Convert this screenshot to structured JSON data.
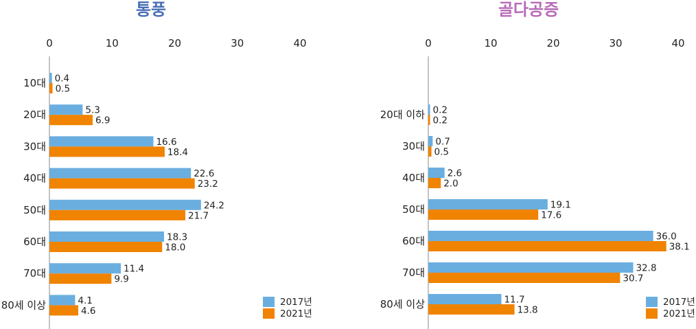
{
  "colors": {
    "y2017": "#6aaee0",
    "y2021": "#f08300",
    "title1": "#4a6fb5",
    "title2": "#b86ab8"
  },
  "chart_data": [
    {
      "type": "bar",
      "orientation": "horizontal",
      "title": "통풍",
      "xlim": [
        0,
        40
      ],
      "xticks": [
        0,
        10,
        20,
        30,
        40
      ],
      "categories": [
        "10대",
        "20대",
        "30대",
        "40대",
        "50대",
        "60대",
        "70대",
        "80세 이상"
      ],
      "series": [
        {
          "name": "2017년",
          "values": [
            0.4,
            5.3,
            16.6,
            22.6,
            24.2,
            18.3,
            11.4,
            4.1
          ],
          "labels": [
            "0.4",
            "5.3",
            "16.6",
            "22.6",
            "24.2",
            "18.3",
            "11.4",
            "4.1"
          ]
        },
        {
          "name": "2021년",
          "values": [
            0.5,
            6.9,
            18.4,
            23.2,
            21.7,
            18.0,
            9.9,
            4.6
          ],
          "labels": [
            "0.5",
            "6.9",
            "18.4",
            "23.2",
            "21.7",
            "18.0",
            "9.9",
            "4.6"
          ]
        }
      ],
      "legend": "bottom-right"
    },
    {
      "type": "bar",
      "orientation": "horizontal",
      "title": "골다공증",
      "xlim": [
        0,
        40
      ],
      "xticks": [
        0,
        10,
        20,
        30,
        40
      ],
      "categories": [
        "20대 이하",
        "30대",
        "40대",
        "50대",
        "60대",
        "70대",
        "80세 이상"
      ],
      "series": [
        {
          "name": "2017년",
          "values": [
            0.2,
            0.7,
            2.6,
            19.1,
            36.0,
            32.8,
            11.7
          ],
          "labels": [
            "0.2",
            "0.7",
            "2.6",
            "19.1",
            "36.0",
            "32.8",
            "11.7"
          ]
        },
        {
          "name": "2021년",
          "values": [
            0.2,
            0.5,
            2.0,
            17.6,
            38.1,
            30.7,
            13.8
          ],
          "labels": [
            "0.2",
            "0.5",
            "2.0",
            "17.6",
            "38.1",
            "30.7",
            "13.8"
          ]
        }
      ],
      "legend": "bottom-right"
    }
  ]
}
